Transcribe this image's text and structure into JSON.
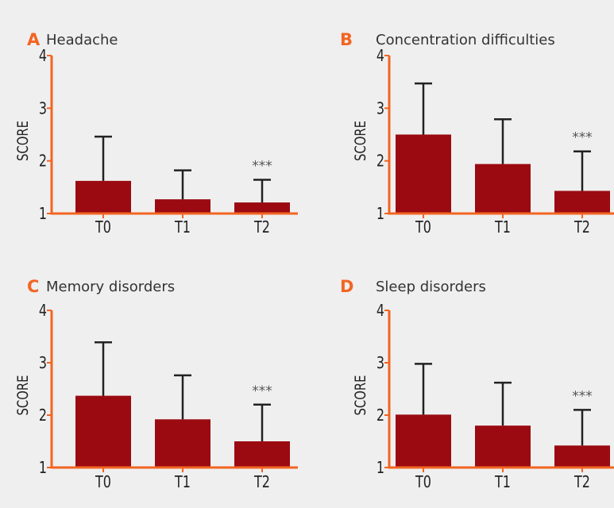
{
  "colors": {
    "background": "#efefef",
    "bar": "#9b0a11",
    "axis": "#f26522",
    "panel_letter": "#f26522",
    "error_bar": "#222222",
    "significance": "#555555"
  },
  "chart_data": [
    {
      "type": "bar",
      "panel": "A",
      "title": "Headache",
      "ylabel": "SCORE",
      "ylim": [
        1,
        4
      ],
      "yticks": [
        "1",
        "2",
        "3",
        "4"
      ],
      "categories": [
        "T0",
        "T1",
        "T2"
      ],
      "values": [
        1.62,
        1.27,
        1.21
      ],
      "errors": [
        0.84,
        0.55,
        0.43
      ],
      "annotations": [
        {
          "category": "T2",
          "text": "***"
        }
      ],
      "grid": false
    },
    {
      "type": "bar",
      "panel": "B",
      "title": "Concentration difficulties",
      "ylabel": "SCORE",
      "ylim": [
        1,
        4
      ],
      "yticks": [
        "1",
        "2",
        "3",
        "4"
      ],
      "categories": [
        "T0",
        "T1",
        "T2"
      ],
      "values": [
        2.5,
        1.94,
        1.43
      ],
      "errors": [
        0.97,
        0.85,
        0.75
      ],
      "annotations": [
        {
          "category": "T2",
          "text": "***"
        }
      ],
      "grid": false
    },
    {
      "type": "bar",
      "panel": "C",
      "title": "Memory disorders",
      "ylabel": "SCORE",
      "ylim": [
        1,
        4
      ],
      "yticks": [
        "1",
        "2",
        "3",
        "4"
      ],
      "categories": [
        "T0",
        "T1",
        "T2"
      ],
      "values": [
        2.37,
        1.92,
        1.5
      ],
      "errors": [
        1.02,
        0.84,
        0.7
      ],
      "annotations": [
        {
          "category": "T2",
          "text": "***"
        }
      ],
      "grid": false
    },
    {
      "type": "bar",
      "panel": "D",
      "title": "Sleep disorders",
      "ylabel": "SCORE",
      "ylim": [
        1,
        4
      ],
      "yticks": [
        "1",
        "2",
        "3",
        "4"
      ],
      "categories": [
        "T0",
        "T1",
        "T2"
      ],
      "values": [
        2.01,
        1.8,
        1.42
      ],
      "errors": [
        0.97,
        0.82,
        0.68
      ],
      "annotations": [
        {
          "category": "T2",
          "text": "***"
        }
      ],
      "grid": false
    }
  ]
}
